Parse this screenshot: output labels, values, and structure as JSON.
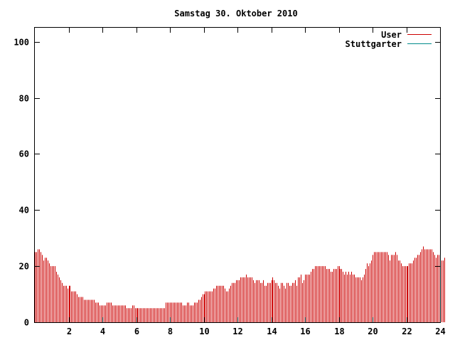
{
  "chart_data": {
    "type": "bar",
    "title": "Samstag 30. Oktober 2010",
    "xlabel": "",
    "ylabel": "",
    "xlim": [
      0,
      24
    ],
    "ylim": [
      0,
      105
    ],
    "x_ticks": [
      2,
      4,
      6,
      8,
      10,
      12,
      14,
      16,
      18,
      20,
      22,
      24
    ],
    "y_ticks": [
      0,
      20,
      40,
      60,
      80,
      100
    ],
    "grid": false,
    "legend_position": "top-right",
    "series": [
      {
        "name": "User",
        "color": "#cc0000",
        "sample_interval_minutes": 5,
        "values": [
          25,
          25,
          26,
          26,
          25,
          24,
          22,
          23,
          23,
          22,
          21,
          20,
          20,
          20,
          20,
          18,
          17,
          16,
          15,
          14,
          13,
          13,
          13,
          12,
          13,
          13,
          11,
          11,
          11,
          11,
          10,
          9,
          9,
          9,
          9,
          8,
          8,
          8,
          8,
          8,
          8,
          8,
          8,
          7,
          7,
          7,
          6,
          6,
          6,
          6,
          6,
          7,
          7,
          7,
          7,
          6,
          6,
          6,
          6,
          6,
          6,
          6,
          6,
          6,
          6,
          5,
          5,
          5,
          5,
          6,
          6,
          5,
          5,
          5,
          5,
          5,
          5,
          5,
          5,
          5,
          5,
          5,
          5,
          5,
          5,
          5,
          5,
          5,
          5,
          5,
          5,
          5,
          5,
          7,
          7,
          7,
          7,
          7,
          7,
          7,
          7,
          7,
          7,
          7,
          7,
          6,
          6,
          6,
          7,
          7,
          6,
          6,
          6,
          7,
          7,
          7,
          8,
          8,
          9,
          10,
          10,
          11,
          11,
          11,
          11,
          11,
          11,
          12,
          12,
          13,
          13,
          13,
          13,
          13,
          13,
          12,
          11,
          11,
          12,
          13,
          14,
          14,
          14,
          15,
          15,
          15,
          16,
          16,
          16,
          16,
          17,
          16,
          16,
          16,
          16,
          15,
          14,
          15,
          15,
          15,
          14,
          14,
          15,
          13,
          13,
          14,
          14,
          14,
          15,
          16,
          15,
          14,
          14,
          13,
          12,
          14,
          14,
          13,
          12,
          14,
          14,
          13,
          13,
          14,
          14,
          15,
          13,
          16,
          16,
          17,
          14,
          15,
          17,
          17,
          17,
          17,
          18,
          19,
          19,
          20,
          20,
          20,
          20,
          20,
          20,
          20,
          20,
          19,
          19,
          19,
          18,
          18,
          19,
          19,
          19,
          20,
          20,
          19,
          19,
          18,
          17,
          18,
          17,
          18,
          17,
          18,
          17,
          17,
          16,
          16,
          16,
          16,
          15,
          16,
          17,
          19,
          21,
          20,
          21,
          22,
          24,
          25,
          25,
          25,
          25,
          25,
          25,
          25,
          25,
          25,
          25,
          24,
          22,
          24,
          24,
          24,
          25,
          24,
          22,
          22,
          21,
          20,
          20,
          20,
          20,
          20,
          21,
          21,
          21,
          22,
          23,
          23,
          24,
          24,
          25,
          26,
          27,
          26,
          26,
          26,
          26,
          26,
          26,
          25,
          24,
          23,
          24,
          24,
          23,
          22,
          22,
          23
        ]
      },
      {
        "name": "Stuttgarter",
        "color": "#008b8b",
        "values": []
      }
    ]
  }
}
